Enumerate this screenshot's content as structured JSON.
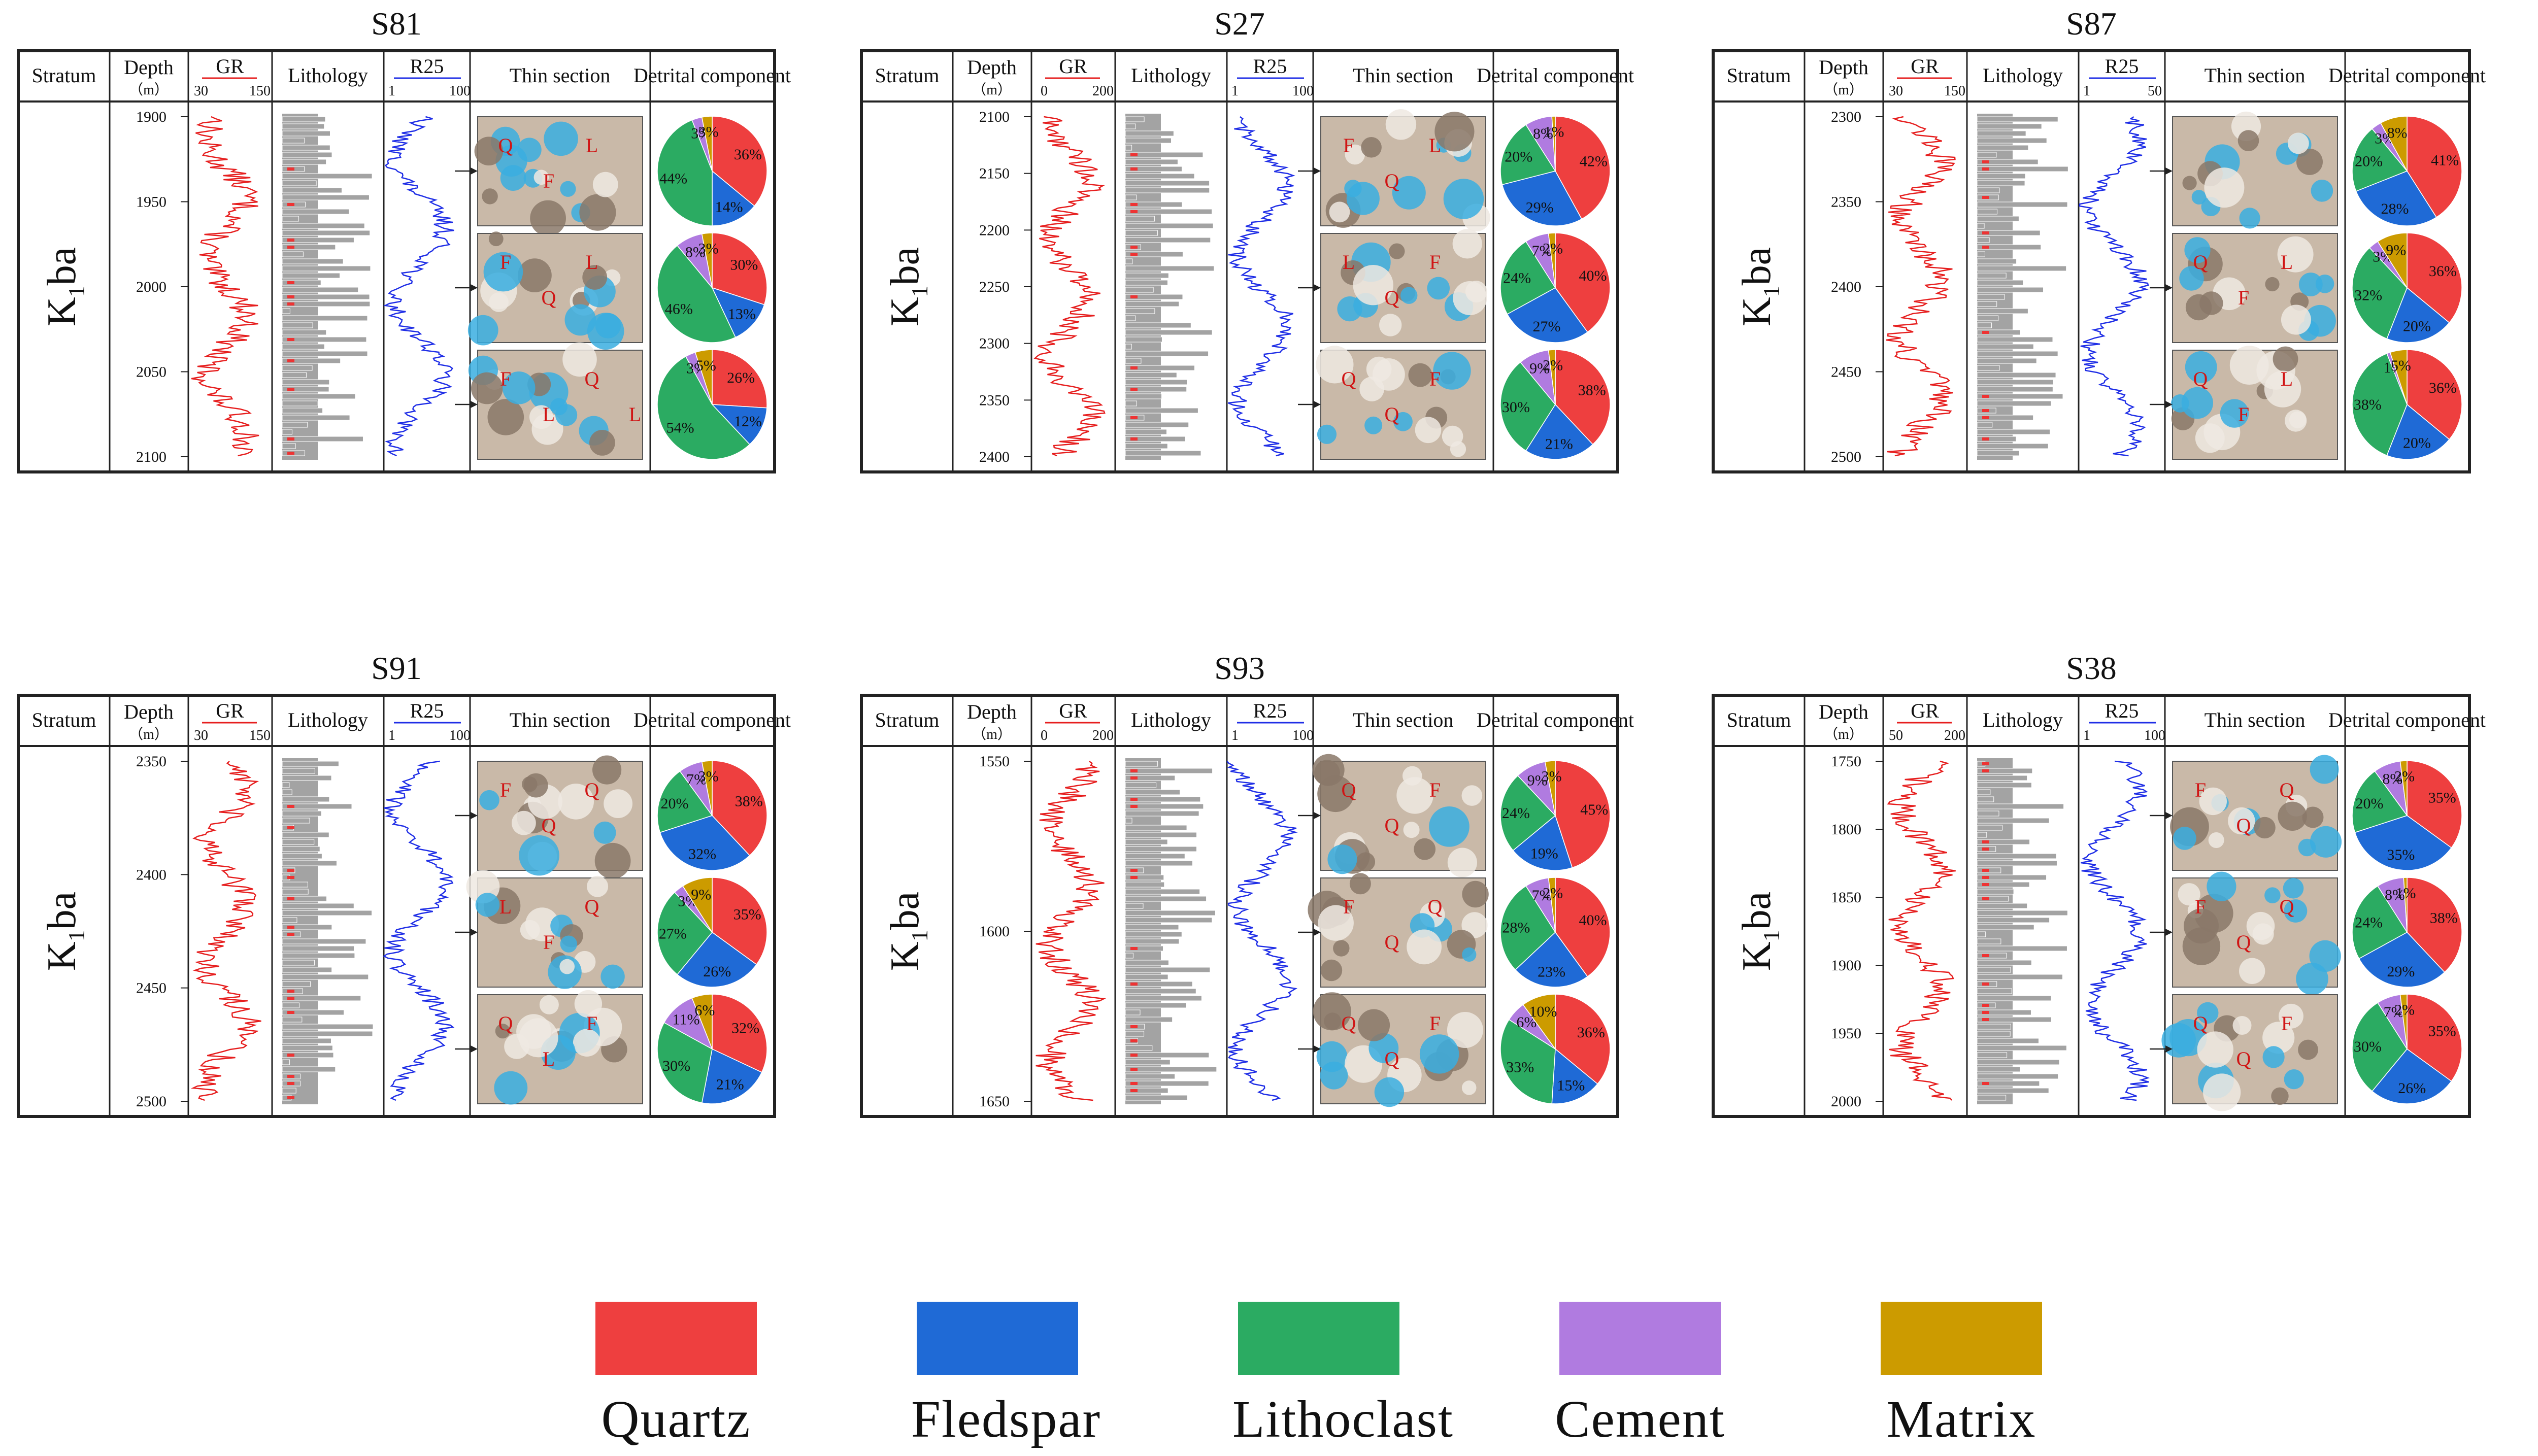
{
  "colors": {
    "quartz": "#ee3f3f",
    "feldspar": "#1f6ad6",
    "lithoclast": "#2bab62",
    "cement": "#b07be0",
    "matrix": "#cc9b00",
    "gr_curve": "#e61e1e",
    "r25_curve": "#1f2ee6",
    "lith_fill": "#a3a3a3"
  },
  "labels": {
    "stratum": "Stratum",
    "depth": "Depth",
    "depth_unit": "（m）",
    "gr": "GR",
    "lithology": "Lithology",
    "r25": "R25",
    "thin_section": "Thin section",
    "detrital": "Detrital component",
    "strat_main": "K",
    "strat_sub": "1",
    "strat_tail": "ba"
  },
  "legend": [
    {
      "key": "quartz",
      "label": "Quartz"
    },
    {
      "key": "feldspar",
      "label": "Fledspar"
    },
    {
      "key": "lithoclast",
      "label": "Lithoclast"
    },
    {
      "key": "cement",
      "label": "Cement"
    },
    {
      "key": "matrix",
      "label": "Matrix"
    }
  ],
  "wells": [
    {
      "name": "S81",
      "gr_scale": [
        "30",
        "150"
      ],
      "r25_scale": [
        "1",
        "100"
      ],
      "depth_ticks": [
        "1900",
        "1950",
        "2000",
        "2050",
        "2100"
      ],
      "thin_labels": [
        [
          "Q",
          "F",
          "L"
        ],
        [
          "F",
          "Q",
          "L"
        ],
        [
          "F",
          "L",
          "Q",
          "L"
        ]
      ],
      "pies": [
        {
          "values": [
            36,
            14,
            44,
            3,
            3
          ],
          "labels": [
            "36%",
            "14%",
            "44%",
            "3%",
            "3%"
          ]
        },
        {
          "values": [
            30,
            13,
            46,
            8,
            3
          ],
          "labels": [
            "30%",
            "13%",
            "46%",
            "8%",
            "3%"
          ]
        },
        {
          "values": [
            26,
            12,
            54,
            3,
            5
          ],
          "labels": [
            "26%",
            "12%",
            "54%",
            "3%",
            "5%"
          ]
        }
      ]
    },
    {
      "name": "S27",
      "gr_scale": [
        "0",
        "200"
      ],
      "r25_scale": [
        "1",
        "100"
      ],
      "depth_ticks": [
        "2100",
        "2150",
        "2200",
        "2250",
        "2300",
        "2350",
        "2400"
      ],
      "thin_labels": [
        [
          "F",
          "Q",
          "L"
        ],
        [
          "L",
          "Q",
          "F"
        ],
        [
          "Q",
          "Q",
          "F"
        ]
      ],
      "pies": [
        {
          "values": [
            42,
            29,
            20,
            8,
            1
          ],
          "labels": [
            "42%",
            "29%",
            "20%",
            "8%",
            "1%"
          ]
        },
        {
          "values": [
            40,
            27,
            24,
            7,
            2
          ],
          "labels": [
            "40%",
            "27%",
            "24%",
            "7%",
            "2%"
          ]
        },
        {
          "values": [
            38,
            21,
            30,
            9,
            2
          ],
          "labels": [
            "38%",
            "21%",
            "30%",
            "9%",
            "2%"
          ]
        }
      ]
    },
    {
      "name": "S87",
      "gr_scale": [
        "30",
        "150"
      ],
      "r25_scale": [
        "1",
        "50"
      ],
      "depth_ticks": [
        "2300",
        "2350",
        "2400",
        "2450",
        "2500"
      ],
      "thin_labels": [
        [
          "",
          "",
          ""
        ],
        [
          "Q",
          "F",
          "L"
        ],
        [
          "Q",
          "F",
          "L"
        ]
      ],
      "pies": [
        {
          "values": [
            41,
            28,
            20,
            3,
            8
          ],
          "labels": [
            "41%",
            "28%",
            "20%",
            "3%",
            "8%"
          ]
        },
        {
          "values": [
            36,
            20,
            32,
            3,
            9
          ],
          "labels": [
            "36%",
            "20%",
            "32%",
            "3%",
            "9%"
          ]
        },
        {
          "values": [
            36,
            20,
            38,
            1,
            5
          ],
          "labels": [
            "36%",
            "20%",
            "38%",
            "1%",
            "5%"
          ]
        }
      ]
    },
    {
      "name": "S91",
      "gr_scale": [
        "30",
        "150"
      ],
      "r25_scale": [
        "1",
        "100"
      ],
      "depth_ticks": [
        "2350",
        "2400",
        "2450",
        "2500"
      ],
      "thin_labels": [
        [
          "F",
          "Q",
          "Q"
        ],
        [
          "L",
          "F",
          "Q"
        ],
        [
          "Q",
          "L",
          "F"
        ]
      ],
      "pies": [
        {
          "values": [
            38,
            32,
            20,
            7,
            3
          ],
          "labels": [
            "38%",
            "32%",
            "20%",
            "7%",
            "3%"
          ]
        },
        {
          "values": [
            35,
            26,
            27,
            3,
            9
          ],
          "labels": [
            "35%",
            "26%",
            "27%",
            "3%",
            "9%"
          ]
        },
        {
          "values": [
            32,
            21,
            30,
            11,
            6
          ],
          "labels": [
            "32%",
            "21%",
            "30%",
            "11%",
            "6%"
          ]
        }
      ]
    },
    {
      "name": "S93",
      "gr_scale": [
        "0",
        "200"
      ],
      "r25_scale": [
        "1",
        "100"
      ],
      "depth_ticks": [
        "1550",
        "1600",
        "1650"
      ],
      "thin_labels": [
        [
          "Q",
          "Q",
          "F"
        ],
        [
          "F",
          "Q",
          "Q"
        ],
        [
          "Q",
          "Q",
          "F"
        ]
      ],
      "pies": [
        {
          "values": [
            45,
            19,
            24,
            9,
            3
          ],
          "labels": [
            "45%",
            "19%",
            "24%",
            "9%",
            "3%"
          ]
        },
        {
          "values": [
            40,
            23,
            28,
            7,
            2
          ],
          "labels": [
            "40%",
            "23%",
            "28%",
            "7%",
            "2%"
          ]
        },
        {
          "values": [
            36,
            15,
            33,
            6,
            10
          ],
          "labels": [
            "36%",
            "15%",
            "33%",
            "6%",
            "10%"
          ]
        }
      ]
    },
    {
      "name": "S38",
      "gr_scale": [
        "50",
        "200"
      ],
      "r25_scale": [
        "1",
        "100"
      ],
      "depth_ticks": [
        "1750",
        "1800",
        "1850",
        "1900",
        "1950",
        "2000"
      ],
      "thin_labels": [
        [
          "F",
          "Q",
          "Q"
        ],
        [
          "F",
          "Q",
          "Q"
        ],
        [
          "Q",
          "Q",
          "F"
        ]
      ],
      "pies": [
        {
          "values": [
            35,
            35,
            20,
            8,
            2
          ],
          "labels": [
            "35%",
            "35%",
            "20%",
            "8%",
            "2%"
          ]
        },
        {
          "values": [
            38,
            29,
            24,
            8,
            1
          ],
          "labels": [
            "38%",
            "29%",
            "24%",
            "8%",
            "1%"
          ]
        },
        {
          "values": [
            35,
            26,
            30,
            7,
            2
          ],
          "labels": [
            "35%",
            "26%",
            "30%",
            "7%",
            "2%"
          ]
        }
      ]
    }
  ]
}
